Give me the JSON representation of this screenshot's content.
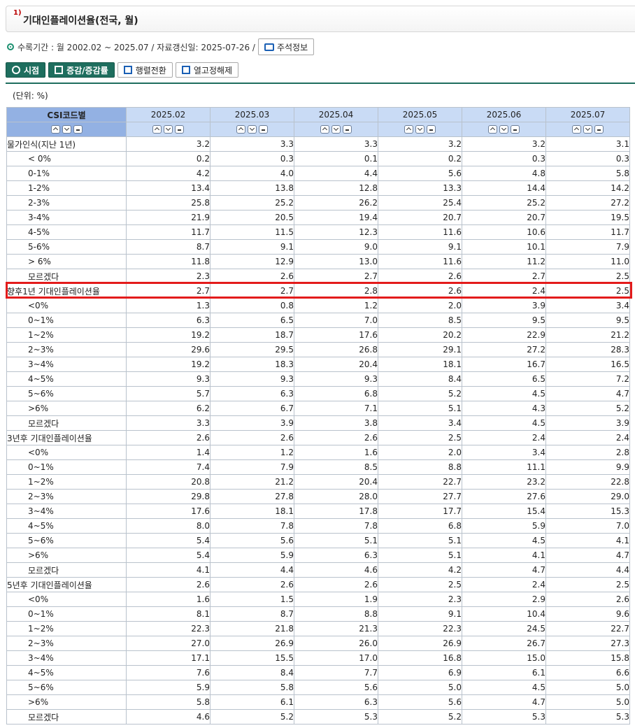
{
  "header": {
    "superscript": "1)",
    "title": "기대인플레이션율(전국, 월)"
  },
  "meta": {
    "info": "수록기간 : 월 2002.02 ~ 2025.07 / 자료갱신일: 2025-07-26 /",
    "note_button": "주석정보"
  },
  "toolbar": {
    "timepoint": "시점",
    "change": "증감/증감률",
    "transpose": "행렬전환",
    "fix_columns": "열고정해제"
  },
  "unit": "(단위: %)",
  "table": {
    "corner": "CSI코드별",
    "columns": [
      "2025.02",
      "2025.03",
      "2025.04",
      "2025.05",
      "2025.06",
      "2025.07"
    ],
    "rows": [
      {
        "label": "물가인식(지난 1년)",
        "indent": false,
        "values": [
          "3.2",
          "3.3",
          "3.3",
          "3.2",
          "3.2",
          "3.1"
        ]
      },
      {
        "label": "< 0%",
        "indent": true,
        "values": [
          "0.2",
          "0.3",
          "0.1",
          "0.2",
          "0.3",
          "0.3"
        ]
      },
      {
        "label": "0-1%",
        "indent": true,
        "values": [
          "4.2",
          "4.0",
          "4.4",
          "5.6",
          "4.8",
          "5.8"
        ]
      },
      {
        "label": "1-2%",
        "indent": true,
        "values": [
          "13.4",
          "13.8",
          "12.8",
          "13.3",
          "14.4",
          "14.2"
        ]
      },
      {
        "label": "2-3%",
        "indent": true,
        "values": [
          "25.8",
          "25.2",
          "26.2",
          "25.4",
          "25.2",
          "27.2"
        ]
      },
      {
        "label": "3-4%",
        "indent": true,
        "values": [
          "21.9",
          "20.5",
          "19.4",
          "20.7",
          "20.7",
          "19.5"
        ]
      },
      {
        "label": "4-5%",
        "indent": true,
        "values": [
          "11.7",
          "11.5",
          "12.3",
          "11.6",
          "10.6",
          "11.7"
        ]
      },
      {
        "label": "5-6%",
        "indent": true,
        "values": [
          "8.7",
          "9.1",
          "9.0",
          "9.1",
          "10.1",
          "7.9"
        ]
      },
      {
        "label": "> 6%",
        "indent": true,
        "values": [
          "11.8",
          "12.9",
          "13.0",
          "11.6",
          "11.2",
          "11.0"
        ]
      },
      {
        "label": "모르겠다",
        "indent": true,
        "values": [
          "2.3",
          "2.6",
          "2.7",
          "2.6",
          "2.7",
          "2.5"
        ]
      },
      {
        "label": "향후1년 기대인플레이션율",
        "indent": false,
        "values": [
          "2.7",
          "2.7",
          "2.8",
          "2.6",
          "2.4",
          "2.5"
        ]
      },
      {
        "label": "<0%",
        "indent": true,
        "values": [
          "1.3",
          "0.8",
          "1.2",
          "2.0",
          "3.9",
          "3.4"
        ]
      },
      {
        "label": "0~1%",
        "indent": true,
        "values": [
          "6.3",
          "6.5",
          "7.0",
          "8.5",
          "9.5",
          "9.5"
        ]
      },
      {
        "label": "1~2%",
        "indent": true,
        "values": [
          "19.2",
          "18.7",
          "17.6",
          "20.2",
          "22.9",
          "21.2"
        ]
      },
      {
        "label": "2~3%",
        "indent": true,
        "values": [
          "29.6",
          "29.5",
          "26.8",
          "29.1",
          "27.2",
          "28.3"
        ]
      },
      {
        "label": "3~4%",
        "indent": true,
        "values": [
          "19.2",
          "18.3",
          "20.4",
          "18.1",
          "16.7",
          "16.5"
        ]
      },
      {
        "label": "4~5%",
        "indent": true,
        "values": [
          "9.3",
          "9.3",
          "9.3",
          "8.4",
          "6.5",
          "7.2"
        ]
      },
      {
        "label": "5~6%",
        "indent": true,
        "values": [
          "5.7",
          "6.3",
          "6.8",
          "5.2",
          "4.5",
          "4.7"
        ]
      },
      {
        "label": ">6%",
        "indent": true,
        "values": [
          "6.2",
          "6.7",
          "7.1",
          "5.1",
          "4.3",
          "5.2"
        ]
      },
      {
        "label": "모르겠다",
        "indent": true,
        "values": [
          "3.3",
          "3.9",
          "3.8",
          "3.4",
          "4.5",
          "3.9"
        ]
      },
      {
        "label": "3년후 기대인플레이션율",
        "indent": false,
        "values": [
          "2.6",
          "2.6",
          "2.6",
          "2.5",
          "2.4",
          "2.4"
        ]
      },
      {
        "label": "<0%",
        "indent": true,
        "values": [
          "1.4",
          "1.2",
          "1.6",
          "2.0",
          "3.4",
          "2.8"
        ]
      },
      {
        "label": "0~1%",
        "indent": true,
        "values": [
          "7.4",
          "7.9",
          "8.5",
          "8.8",
          "11.1",
          "9.9"
        ]
      },
      {
        "label": "1~2%",
        "indent": true,
        "values": [
          "20.8",
          "21.2",
          "20.4",
          "22.7",
          "23.2",
          "22.8"
        ]
      },
      {
        "label": "2~3%",
        "indent": true,
        "values": [
          "29.8",
          "27.8",
          "28.0",
          "27.7",
          "27.6",
          "29.0"
        ]
      },
      {
        "label": "3~4%",
        "indent": true,
        "values": [
          "17.6",
          "18.1",
          "17.8",
          "17.7",
          "15.4",
          "15.3"
        ]
      },
      {
        "label": "4~5%",
        "indent": true,
        "values": [
          "8.0",
          "7.8",
          "7.8",
          "6.8",
          "5.9",
          "7.0"
        ]
      },
      {
        "label": "5~6%",
        "indent": true,
        "values": [
          "5.4",
          "5.6",
          "5.1",
          "5.1",
          "4.5",
          "4.1"
        ]
      },
      {
        "label": ">6%",
        "indent": true,
        "values": [
          "5.4",
          "5.9",
          "6.3",
          "5.1",
          "4.1",
          "4.7"
        ]
      },
      {
        "label": "모르겠다",
        "indent": true,
        "values": [
          "4.1",
          "4.4",
          "4.6",
          "4.2",
          "4.7",
          "4.4"
        ]
      },
      {
        "label": "5년후 기대인플레이션율",
        "indent": false,
        "values": [
          "2.6",
          "2.6",
          "2.6",
          "2.5",
          "2.4",
          "2.5"
        ]
      },
      {
        "label": "<0%",
        "indent": true,
        "values": [
          "1.6",
          "1.5",
          "1.9",
          "2.3",
          "2.9",
          "2.6"
        ]
      },
      {
        "label": "0~1%",
        "indent": true,
        "values": [
          "8.1",
          "8.7",
          "8.8",
          "9.1",
          "10.4",
          "9.6"
        ]
      },
      {
        "label": "1~2%",
        "indent": true,
        "values": [
          "22.3",
          "21.8",
          "21.3",
          "22.3",
          "24.5",
          "22.7"
        ]
      },
      {
        "label": "2~3%",
        "indent": true,
        "values": [
          "27.0",
          "26.9",
          "26.0",
          "26.9",
          "26.7",
          "27.3"
        ]
      },
      {
        "label": "3~4%",
        "indent": true,
        "values": [
          "17.1",
          "15.5",
          "17.0",
          "16.8",
          "15.0",
          "15.8"
        ]
      },
      {
        "label": "4~5%",
        "indent": true,
        "values": [
          "7.6",
          "8.4",
          "7.7",
          "6.9",
          "6.1",
          "6.6"
        ]
      },
      {
        "label": "5~6%",
        "indent": true,
        "values": [
          "5.9",
          "5.8",
          "5.6",
          "5.0",
          "4.5",
          "5.0"
        ]
      },
      {
        "label": ">6%",
        "indent": true,
        "values": [
          "5.8",
          "6.1",
          "6.3",
          "5.6",
          "4.7",
          "5.0"
        ]
      },
      {
        "label": "모르겠다",
        "indent": true,
        "values": [
          "4.6",
          "5.2",
          "5.3",
          "5.2",
          "5.3",
          "5.3"
        ]
      }
    ],
    "highlight_row": 10
  },
  "colors": {
    "accent": "#1e6e5e",
    "header_bg": "#c9dbf5",
    "corner_bg": "#93b1e3",
    "highlight": "#e31b1b"
  }
}
